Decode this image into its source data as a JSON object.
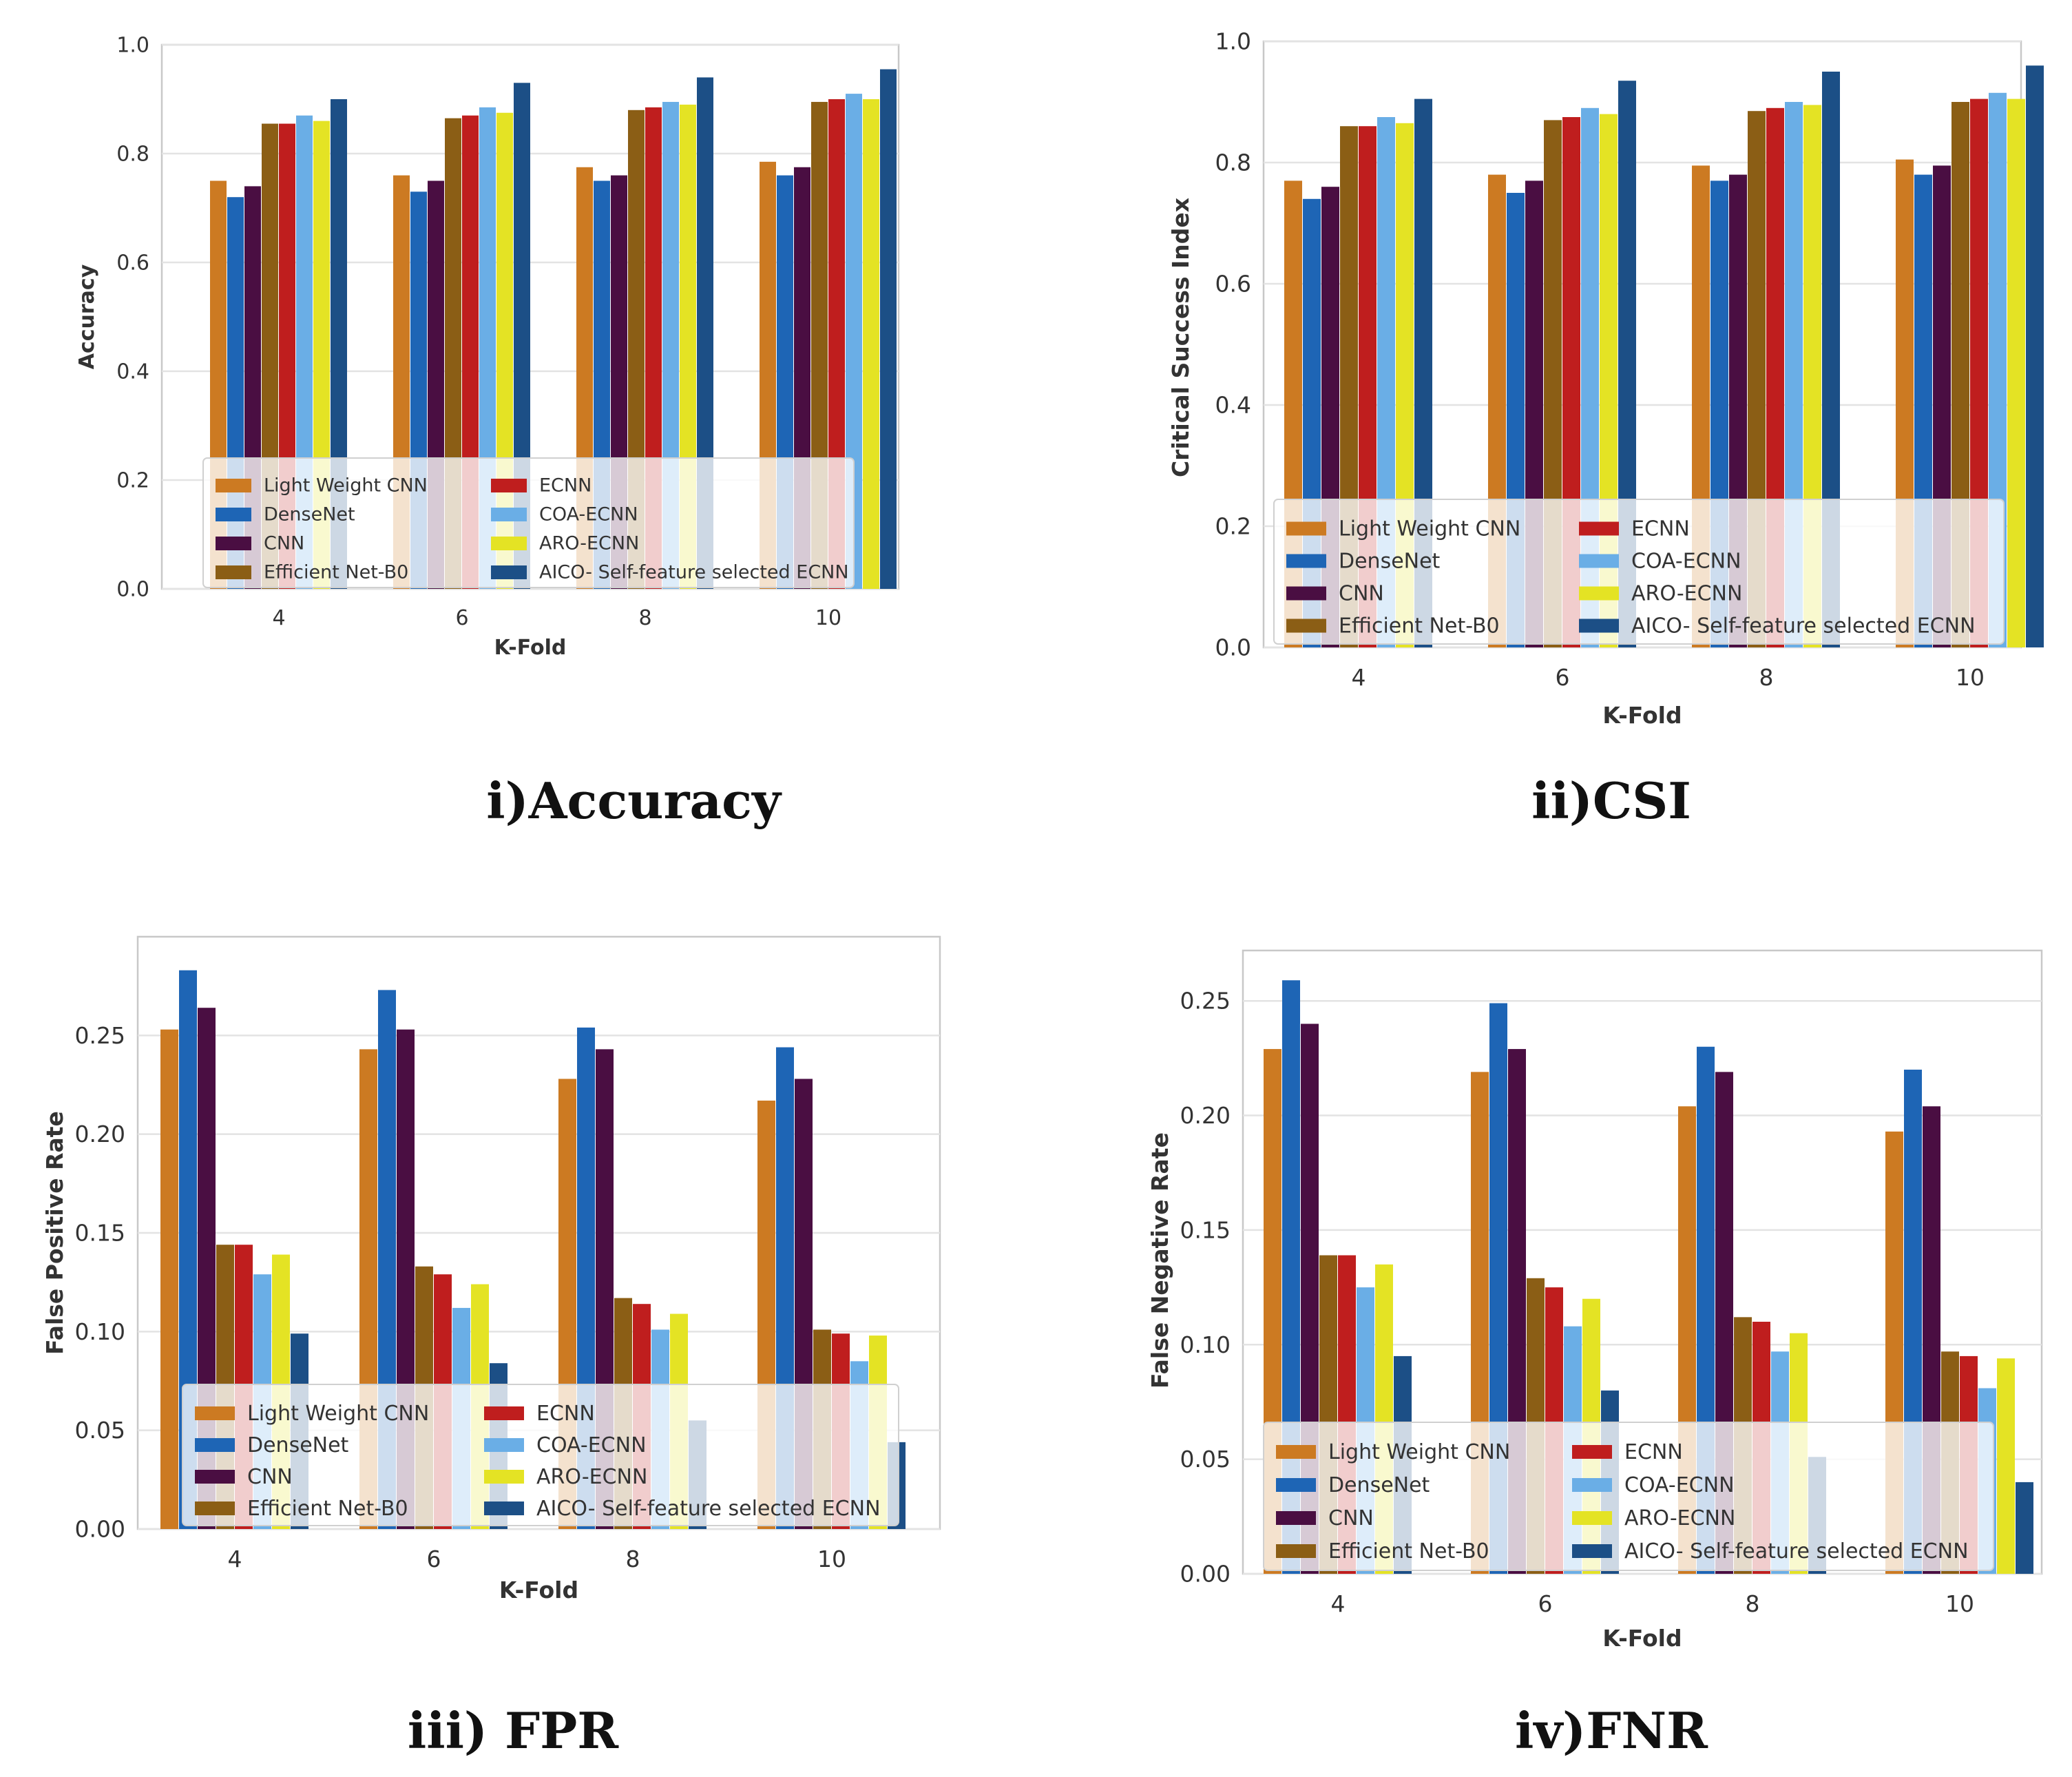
{
  "figure": {
    "captions": [
      "i)Accuracy",
      "ii)CSI",
      "iii) FPR",
      "iv)FNR"
    ]
  },
  "legend_colors": {
    "Light Weight CNN": "#CC7A22",
    "DenseNet": "#1E65B5",
    "CNN": "#4A0E42",
    "Efficient Net-B0": "#8B5E15",
    "ECNN": "#BF1E1E",
    "COA-ECNN": "#6AAEE6",
    "ARO-ECNN": "#E4E324",
    "AICO- Self-feature selected ECNN": "#1C4F86"
  },
  "chart_data": [
    {
      "type": "bar",
      "title": "",
      "xlabel": "K-Fold",
      "ylabel": "Accuracy",
      "categories": [
        "4",
        "6",
        "8",
        "10"
      ],
      "ylim": [
        0,
        1.0
      ],
      "yticks": [
        "0.0",
        "0.2",
        "0.4",
        "0.6",
        "0.8",
        "1.0"
      ],
      "grid": true,
      "legend_position": "bottom-center",
      "series": [
        {
          "name": "Light Weight CNN",
          "values": [
            0.75,
            0.76,
            0.775,
            0.785
          ]
        },
        {
          "name": "DenseNet",
          "values": [
            0.72,
            0.73,
            0.75,
            0.76
          ]
        },
        {
          "name": "CNN",
          "values": [
            0.74,
            0.75,
            0.76,
            0.775
          ]
        },
        {
          "name": "Efficient Net-B0",
          "values": [
            0.855,
            0.865,
            0.88,
            0.895
          ]
        },
        {
          "name": "ECNN",
          "values": [
            0.855,
            0.87,
            0.885,
            0.9
          ]
        },
        {
          "name": "COA-ECNN",
          "values": [
            0.87,
            0.885,
            0.895,
            0.91
          ]
        },
        {
          "name": "ARO-ECNN",
          "values": [
            0.86,
            0.875,
            0.89,
            0.9
          ]
        },
        {
          "name": "AICO- Self-feature selected ECNN",
          "values": [
            0.9,
            0.93,
            0.94,
            0.955
          ]
        }
      ]
    },
    {
      "type": "bar",
      "title": "",
      "xlabel": "K-Fold",
      "ylabel": "Critical Success Index",
      "categories": [
        "4",
        "6",
        "8",
        "10"
      ],
      "ylim": [
        0,
        1.0
      ],
      "yticks": [
        "0.0",
        "0.2",
        "0.4",
        "0.6",
        "0.8",
        "1.0"
      ],
      "grid": true,
      "legend_position": "bottom-center",
      "series": [
        {
          "name": "Light Weight CNN",
          "values": [
            0.77,
            0.78,
            0.795,
            0.805
          ]
        },
        {
          "name": "DenseNet",
          "values": [
            0.74,
            0.75,
            0.77,
            0.78
          ]
        },
        {
          "name": "CNN",
          "values": [
            0.76,
            0.77,
            0.78,
            0.795
          ]
        },
        {
          "name": "Efficient Net-B0",
          "values": [
            0.86,
            0.87,
            0.885,
            0.9
          ]
        },
        {
          "name": "ECNN",
          "values": [
            0.86,
            0.875,
            0.89,
            0.905
          ]
        },
        {
          "name": "COA-ECNN",
          "values": [
            0.875,
            0.89,
            0.9,
            0.915
          ]
        },
        {
          "name": "ARO-ECNN",
          "values": [
            0.865,
            0.88,
            0.895,
            0.905
          ]
        },
        {
          "name": "AICO- Self-feature selected ECNN",
          "values": [
            0.905,
            0.935,
            0.95,
            0.96
          ]
        }
      ]
    },
    {
      "type": "bar",
      "title": "",
      "xlabel": "K-Fold",
      "ylabel": "False Positive Rate",
      "categories": [
        "4",
        "6",
        "8",
        "10"
      ],
      "ylim": [
        0,
        0.3
      ],
      "yticks": [
        "0.00",
        "0.05",
        "0.10",
        "0.15",
        "0.20",
        "0.25"
      ],
      "grid": true,
      "legend_position": "bottom-center",
      "series": [
        {
          "name": "Light Weight CNN",
          "values": [
            0.253,
            0.243,
            0.228,
            0.217
          ]
        },
        {
          "name": "DenseNet",
          "values": [
            0.283,
            0.273,
            0.254,
            0.244
          ]
        },
        {
          "name": "CNN",
          "values": [
            0.264,
            0.253,
            0.243,
            0.228
          ]
        },
        {
          "name": "Efficient Net-B0",
          "values": [
            0.144,
            0.133,
            0.117,
            0.101
          ]
        },
        {
          "name": "ECNN",
          "values": [
            0.144,
            0.129,
            0.114,
            0.099
          ]
        },
        {
          "name": "COA-ECNN",
          "values": [
            0.129,
            0.112,
            0.101,
            0.085
          ]
        },
        {
          "name": "ARO-ECNN",
          "values": [
            0.139,
            0.124,
            0.109,
            0.098
          ]
        },
        {
          "name": "AICO- Self-feature selected ECNN",
          "values": [
            0.099,
            0.084,
            0.055,
            0.044
          ]
        }
      ]
    },
    {
      "type": "bar",
      "title": "",
      "xlabel": "K-Fold",
      "ylabel": "False Negative Rate",
      "categories": [
        "4",
        "6",
        "8",
        "10"
      ],
      "ylim": [
        0,
        0.272
      ],
      "yticks": [
        "0.00",
        "0.05",
        "0.10",
        "0.15",
        "0.20",
        "0.25"
      ],
      "grid": true,
      "legend_position": "bottom-center",
      "series": [
        {
          "name": "Light Weight CNN",
          "values": [
            0.229,
            0.219,
            0.204,
            0.193
          ]
        },
        {
          "name": "DenseNet",
          "values": [
            0.259,
            0.249,
            0.23,
            0.22
          ]
        },
        {
          "name": "CNN",
          "values": [
            0.24,
            0.229,
            0.219,
            0.204
          ]
        },
        {
          "name": "Efficient Net-B0",
          "values": [
            0.139,
            0.129,
            0.112,
            0.097
          ]
        },
        {
          "name": "ECNN",
          "values": [
            0.139,
            0.125,
            0.11,
            0.095
          ]
        },
        {
          "name": "COA-ECNN",
          "values": [
            0.125,
            0.108,
            0.097,
            0.081
          ]
        },
        {
          "name": "ARO-ECNN",
          "values": [
            0.135,
            0.12,
            0.105,
            0.094
          ]
        },
        {
          "name": "AICO- Self-feature selected ECNN",
          "values": [
            0.095,
            0.08,
            0.051,
            0.04
          ]
        }
      ]
    }
  ]
}
